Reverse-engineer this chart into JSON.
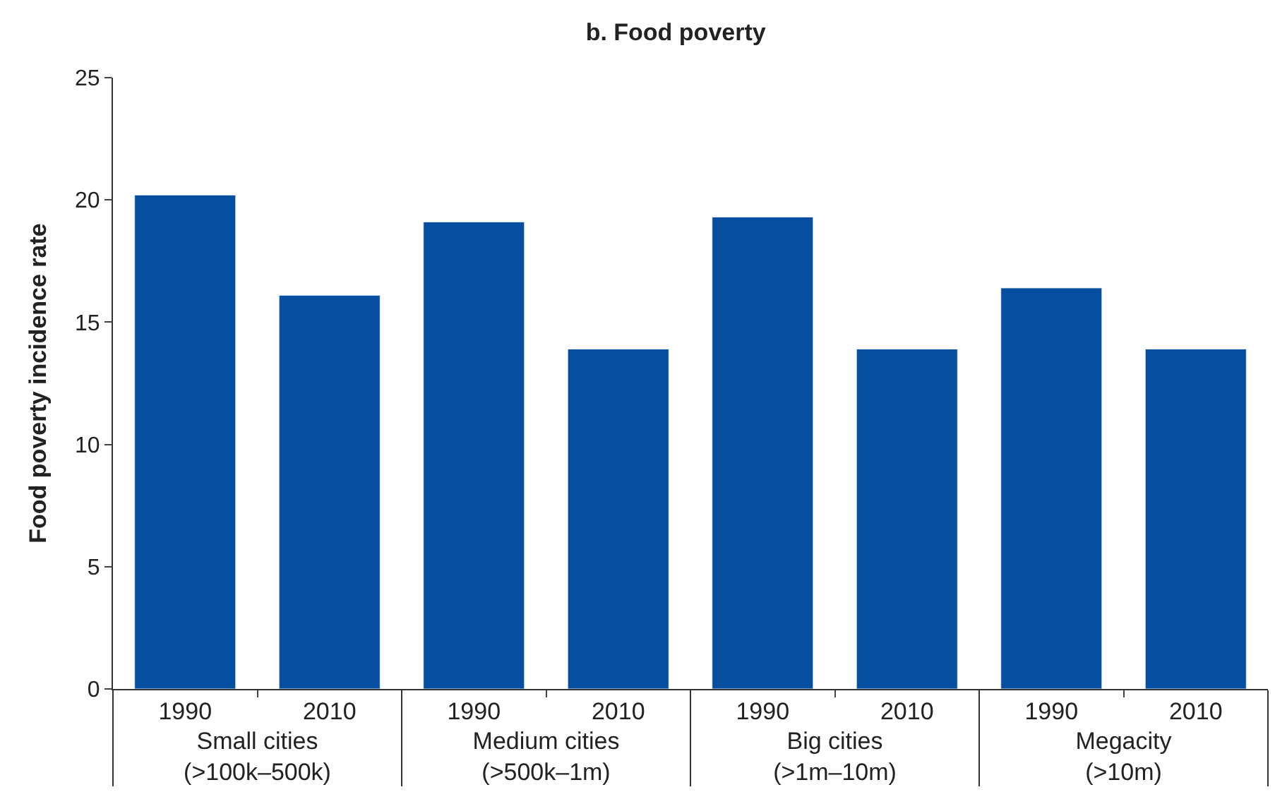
{
  "chart_data": {
    "type": "bar",
    "title": "b. Food poverty",
    "ylabel": "Food poverty incidence rate",
    "categories": [
      "1990",
      "2010",
      "1990",
      "2010",
      "1990",
      "2010",
      "1990",
      "2010"
    ],
    "annotations": [
      "Small cities\n(>100k–500k)",
      "Medium cities\n(>500k–1m)",
      "Big cities\n(>1m–10m)",
      "Megacity\n(>10m)"
    ],
    "values": [
      20.2,
      16.1,
      19.1,
      13.9,
      19.3,
      13.9,
      16.4,
      13.9
    ],
    "color": "#054ea0",
    "ylim": [
      0,
      25
    ],
    "yticks": [
      0,
      5,
      10,
      15,
      20,
      25
    ],
    "legend": false
  }
}
